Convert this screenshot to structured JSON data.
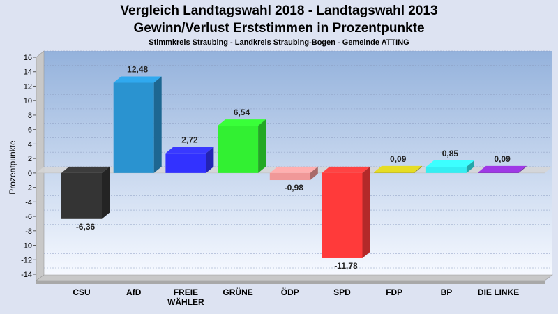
{
  "chart_data": {
    "type": "bar",
    "title": "Vergleich Landtagswahl 2018 - Landtagswahl 2013",
    "title2": "Gewinn/Verlust Erststimmen in Prozentpunkte",
    "subtitle": "Stimmkreis Straubing - Landkreis Straubing-Bogen - Gemeinde ATTING",
    "ylabel": "Prozentpunkte",
    "ylim": [
      -14,
      16
    ],
    "yticks": [
      16,
      14,
      12,
      10,
      8,
      6,
      4,
      2,
      0,
      -2,
      -4,
      -6,
      -8,
      -10,
      -12,
      -14
    ],
    "categories": [
      "CSU",
      "AfD",
      "FREIE WÄHLER",
      "GRÜNE",
      "ÖDP",
      "SPD",
      "FDP",
      "BP",
      "DIE LINKE"
    ],
    "values": [
      -6.36,
      12.48,
      2.72,
      6.54,
      -0.98,
      -11.78,
      0.09,
      0.85,
      0.09
    ],
    "value_labels": [
      "-6,36",
      "12,48",
      "2,72",
      "6,54",
      "-0,98",
      "-11,78",
      "0,09",
      "0,85",
      "0,09"
    ],
    "colors": [
      "#343434",
      "#2a93d0",
      "#3232ff",
      "#32f032",
      "#f09898",
      "#ff3a3a",
      "#c8c020",
      "#34eef2",
      "#8a32c8"
    ],
    "grid": true
  }
}
